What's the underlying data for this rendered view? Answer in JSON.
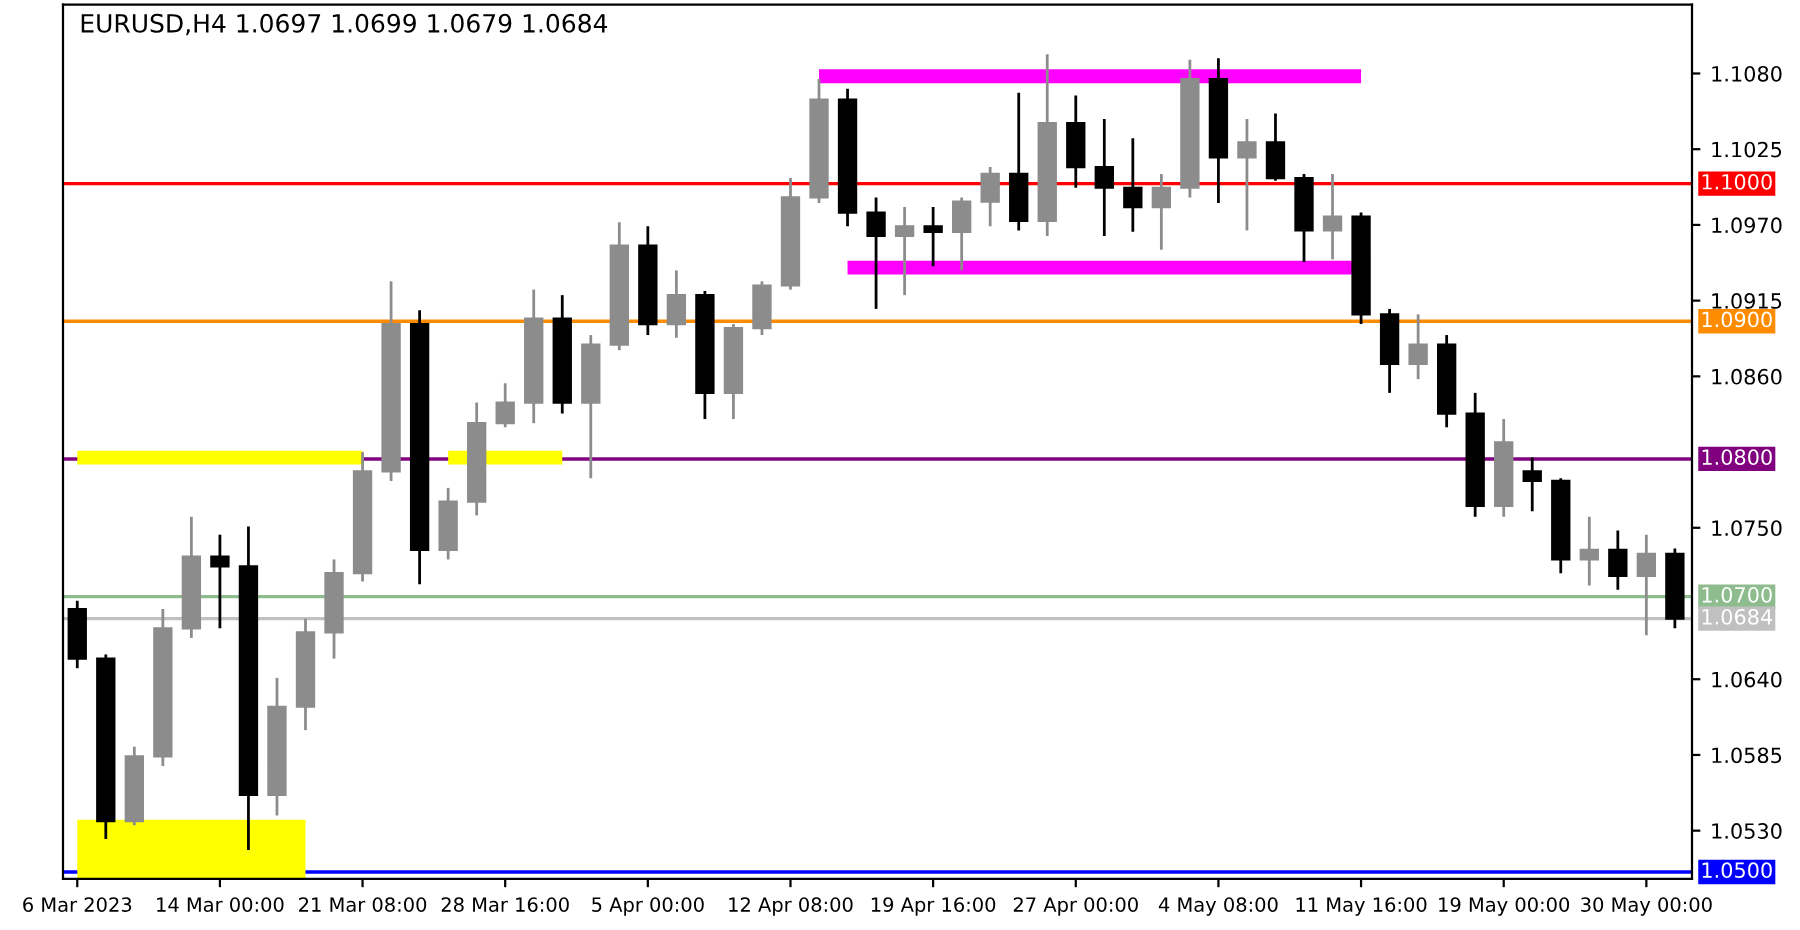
{
  "chart_data": {
    "type": "candlestick",
    "title": "EURUSD,H4 1.0697 1.0699 1.0679 1.0684",
    "categories": [
      "6 Mar 2023",
      null,
      null,
      null,
      null,
      "14 Mar 00:00",
      null,
      null,
      null,
      null,
      "21 Mar 08:00",
      null,
      null,
      null,
      null,
      "28 Mar 16:00",
      null,
      null,
      null,
      null,
      "5 Apr 00:00",
      null,
      null,
      null,
      null,
      "12 Apr 08:00",
      null,
      null,
      null,
      null,
      "19 Apr 16:00",
      null,
      null,
      null,
      null,
      "27 Apr 00:00",
      null,
      null,
      null,
      null,
      "4 May 08:00",
      null,
      null,
      null,
      null,
      "11 May 16:00",
      null,
      null,
      null,
      null,
      "19 May 00:00",
      null,
      null,
      null,
      null,
      "30 May 00:00",
      null
    ],
    "ohlc": [
      [
        1.0691,
        1.0697,
        1.0648,
        1.0655
      ],
      [
        1.0655,
        1.0658,
        1.0524,
        1.0537
      ],
      [
        1.0537,
        1.0591,
        1.0534,
        1.0584
      ],
      [
        1.0584,
        1.0691,
        1.0577,
        1.0677
      ],
      [
        1.0677,
        1.0758,
        1.067,
        1.0729
      ],
      [
        1.0729,
        1.0745,
        1.0677,
        1.0722
      ],
      [
        1.0722,
        1.0751,
        1.0516,
        1.0556
      ],
      [
        1.0556,
        1.0641,
        1.0541,
        1.062
      ],
      [
        1.062,
        1.0684,
        1.0603,
        1.0674
      ],
      [
        1.0674,
        1.0727,
        1.0655,
        1.0717
      ],
      [
        1.0717,
        1.0805,
        1.0711,
        1.0791
      ],
      [
        1.0791,
        1.0929,
        1.0784,
        1.0898
      ],
      [
        1.0898,
        1.0908,
        1.0709,
        1.0734
      ],
      [
        1.0734,
        1.0779,
        1.0727,
        1.0769
      ],
      [
        1.0769,
        1.0841,
        1.0759,
        1.0826
      ],
      [
        1.0826,
        1.0855,
        1.0823,
        1.0841
      ],
      [
        1.0841,
        1.0923,
        1.0826,
        1.0902
      ],
      [
        1.0902,
        1.0919,
        1.0833,
        1.0841
      ],
      [
        1.0841,
        1.089,
        1.0786,
        1.0883
      ],
      [
        1.0883,
        1.0972,
        1.0879,
        1.0955
      ],
      [
        1.0955,
        1.0969,
        1.089,
        1.0898
      ],
      [
        1.0898,
        1.0937,
        1.0888,
        1.0919
      ],
      [
        1.0919,
        1.0922,
        1.0829,
        1.0848
      ],
      [
        1.0848,
        1.0898,
        1.0829,
        1.0895
      ],
      [
        1.0895,
        1.0929,
        1.089,
        1.0926
      ],
      [
        1.0926,
        1.1004,
        1.0923,
        1.099
      ],
      [
        1.099,
        1.1076,
        1.0986,
        1.1061
      ],
      [
        1.1061,
        1.1069,
        1.0969,
        1.0979
      ],
      [
        1.0979,
        1.099,
        1.0909,
        1.0962
      ],
      [
        1.0962,
        1.0983,
        1.0919,
        1.0969
      ],
      [
        1.0969,
        1.0983,
        1.094,
        1.0965
      ],
      [
        1.0965,
        1.099,
        1.0937,
        1.0987
      ],
      [
        1.0987,
        1.1012,
        1.0969,
        1.1007
      ],
      [
        1.1007,
        1.1066,
        1.0966,
        1.0973
      ],
      [
        1.0973,
        1.1094,
        1.0962,
        1.1044
      ],
      [
        1.1044,
        1.1064,
        1.0997,
        1.1012
      ],
      [
        1.1012,
        1.1047,
        1.0962,
        1.0997
      ],
      [
        1.0997,
        1.1033,
        1.0965,
        1.0983
      ],
      [
        1.0983,
        1.1007,
        1.0952,
        1.0997
      ],
      [
        1.0997,
        1.109,
        1.099,
        1.1076
      ],
      [
        1.1076,
        1.1091,
        1.0986,
        1.1019
      ],
      [
        1.1019,
        1.1047,
        1.0966,
        1.103
      ],
      [
        1.103,
        1.1051,
        1.1002,
        1.1004
      ],
      [
        1.1004,
        1.1007,
        1.0943,
        1.0966
      ],
      [
        1.0966,
        1.1007,
        1.0945,
        1.0976
      ],
      [
        1.0976,
        1.0979,
        1.0898,
        1.0905
      ],
      [
        1.0905,
        1.0909,
        1.0848,
        1.0869
      ],
      [
        1.0869,
        1.0905,
        1.0858,
        1.0883
      ],
      [
        1.0883,
        1.089,
        1.0823,
        1.0833
      ],
      [
        1.0833,
        1.0848,
        1.0758,
        1.0766
      ],
      [
        1.0766,
        1.0829,
        1.0758,
        1.0812
      ],
      [
        1.0791,
        1.0801,
        1.0762,
        1.0784
      ],
      [
        1.0784,
        1.0786,
        1.0717,
        1.0727
      ],
      [
        1.0727,
        1.0758,
        1.0708,
        1.0734
      ],
      [
        1.0734,
        1.0748,
        1.0705,
        1.0715
      ],
      [
        1.0715,
        1.0745,
        1.0672,
        1.0731
      ],
      [
        1.0731,
        1.0735,
        1.0677,
        1.0684
      ]
    ],
    "series": [
      {
        "type": "line",
        "color": "#ff00ff",
        "values": [
          null,
          null,
          null,
          null,
          null,
          null,
          null,
          null,
          null,
          null,
          null,
          null,
          null,
          null,
          null,
          null,
          null,
          null,
          null,
          null,
          null,
          null,
          null,
          null,
          null,
          null,
          1.1078,
          1.1078,
          1.1078,
          1.1078,
          1.1078,
          1.1078,
          1.1078,
          1.1078,
          1.1078,
          1.1078,
          1.1078,
          1.1078,
          1.1078,
          1.1078,
          1.1078,
          1.1078,
          1.1078,
          1.1078,
          1.1078,
          1.1078,
          null,
          null,
          null,
          null,
          null,
          null,
          null,
          null,
          null,
          null,
          null
        ]
      },
      {
        "type": "line",
        "color": "#ff00ff",
        "values": [
          null,
          null,
          null,
          null,
          null,
          null,
          null,
          null,
          null,
          null,
          null,
          null,
          null,
          null,
          null,
          null,
          null,
          null,
          null,
          null,
          null,
          null,
          null,
          null,
          null,
          null,
          null,
          1.0939,
          1.0939,
          1.0939,
          1.0939,
          1.0939,
          1.0939,
          1.0939,
          1.0939,
          1.0939,
          1.0939,
          1.0939,
          1.0939,
          1.0939,
          1.0939,
          1.0939,
          1.0939,
          1.0939,
          1.0939,
          1.0939,
          null,
          null,
          null,
          null,
          null,
          null,
          null,
          null,
          null,
          null,
          null
        ]
      },
      {
        "type": "line",
        "color": "#ffff00",
        "values": [
          1.0801,
          1.0801,
          1.0801,
          1.0801,
          1.0801,
          1.0801,
          1.0801,
          1.0801,
          1.0801,
          1.0801,
          1.0801,
          null,
          null,
          1.0801,
          1.0801,
          1.0801,
          1.0801,
          1.0801,
          null,
          null,
          null,
          null,
          null,
          null,
          null,
          null,
          null,
          null,
          null,
          null,
          null,
          null,
          null,
          null,
          null,
          null,
          null,
          null,
          null,
          null,
          null,
          null,
          null,
          null,
          null,
          null,
          null,
          null,
          null,
          null,
          null,
          null,
          null,
          null,
          null,
          null,
          null
        ]
      },
      {
        "type": "area",
        "color": "#ffff00",
        "values": [
          1.0538,
          1.0538,
          1.0538,
          1.0538,
          1.0538,
          1.0538,
          1.0538,
          1.0538,
          1.0538,
          null,
          null,
          null,
          null,
          null,
          null,
          null,
          null,
          null,
          null,
          null,
          null,
          null,
          null,
          null,
          null,
          null,
          null,
          null,
          null,
          null,
          null,
          null,
          null,
          null,
          null,
          null,
          null,
          null,
          null,
          null,
          null,
          null,
          null,
          null,
          null,
          null,
          null,
          null,
          null,
          null,
          null,
          null,
          null,
          null,
          null,
          null,
          null
        ]
      }
    ],
    "ref_lines": [
      {
        "axis": "y",
        "value": 1.1,
        "label": "1.1000",
        "color": "#ff0000"
      },
      {
        "axis": "y",
        "value": 1.09,
        "label": "1.0900",
        "color": "#ff8c00"
      },
      {
        "axis": "y",
        "value": 1.08,
        "label": "1.0800",
        "color": "#800080"
      },
      {
        "axis": "y",
        "value": 1.07,
        "label": "1.0700",
        "color": "#8fbc8f"
      },
      {
        "axis": "y",
        "value": 1.0684,
        "label": "1.0684",
        "color": "#c0c0c0"
      },
      {
        "axis": "y",
        "value": 1.05,
        "label": "1.0500",
        "color": "#0000ff"
      }
    ],
    "ylim": [
      1.0495,
      1.113
    ],
    "yticks": [
      {
        "value": 1.053,
        "label": "1.0530"
      },
      1.0585,
      {
        "value": 1.064,
        "label": "1.0640"
      },
      {
        "value": 1.075,
        "label": "1.0750"
      },
      {
        "value": 1.086,
        "label": "1.0860"
      },
      1.0915,
      {
        "value": 1.097,
        "label": "1.0970"
      },
      1.1025,
      {
        "value": 1.108,
        "label": "1.1080"
      }
    ],
    "grid": false
  }
}
